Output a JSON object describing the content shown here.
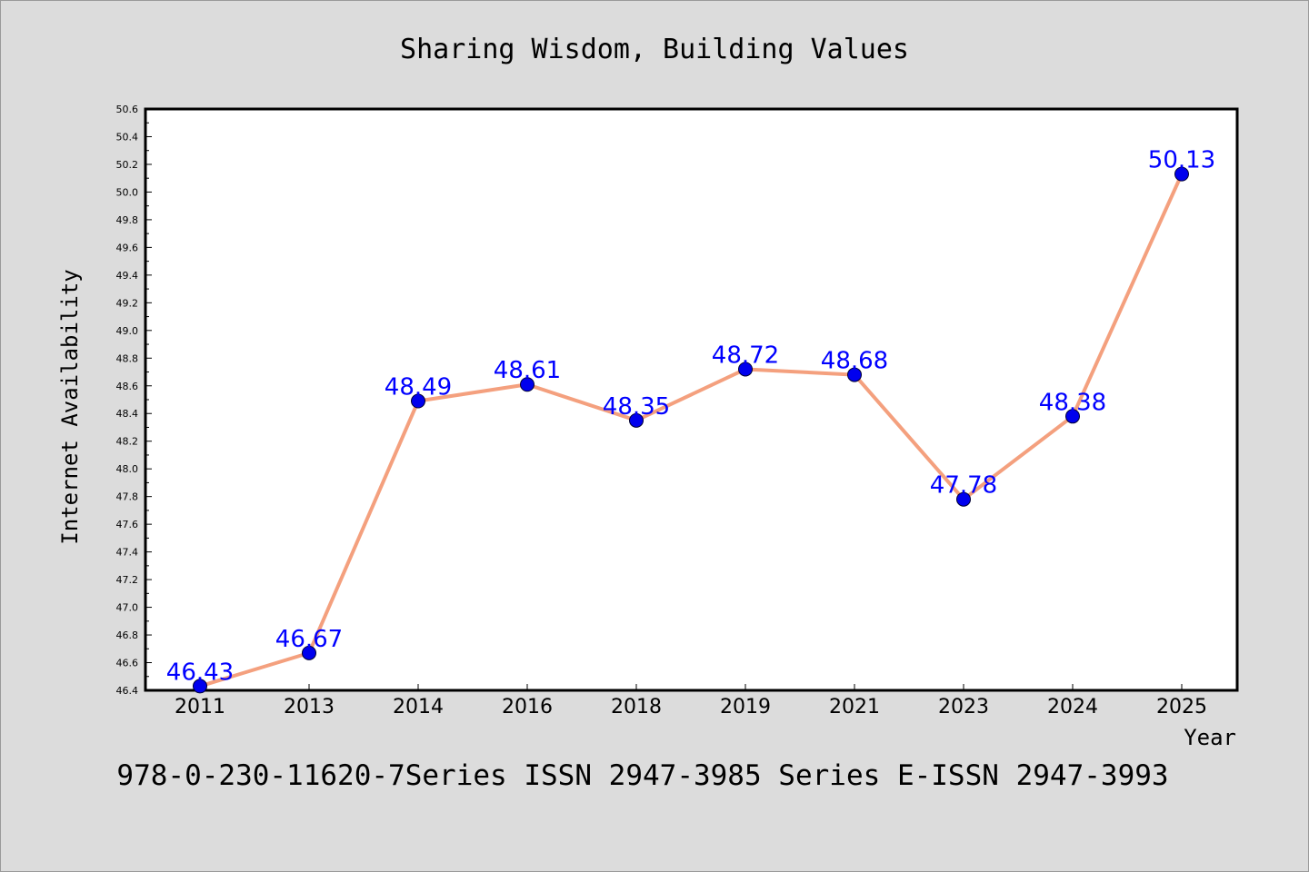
{
  "chart_data": {
    "type": "line",
    "title": "Sharing Wisdom, Building Values",
    "xlabel": "Year",
    "ylabel": "Internet Availability",
    "categories": [
      "2011",
      "2013",
      "2014",
      "2016",
      "2018",
      "2019",
      "2021",
      "2023",
      "2024",
      "2025"
    ],
    "values": [
      46.43,
      46.67,
      48.49,
      48.61,
      48.35,
      48.72,
      48.68,
      47.78,
      48.38,
      50.13
    ],
    "value_labels": [
      "46.43",
      "46.67",
      "48.49",
      "48.61",
      "48.35",
      "48.72",
      "48.68",
      "47.78",
      "48.38",
      "50.13"
    ],
    "ylim": [
      46.4,
      50.6
    ],
    "ytick_step": 0.2,
    "ytick_labels": [
      "46.4",
      "46.6",
      "46.8",
      "47.0",
      "47.2",
      "47.4",
      "47.6",
      "47.8",
      "48.0",
      "48.2",
      "48.4",
      "48.6",
      "48.8",
      "49.0",
      "49.2",
      "49.4",
      "49.6",
      "49.8",
      "50.0",
      "50.2",
      "50.4",
      "50.6"
    ],
    "grid": false,
    "colors": {
      "line": "#f4a07e",
      "marker": "#0000ee",
      "data_label": "#0000ff",
      "plot_background": "#ffffff",
      "page_background": "#dcdcdc"
    }
  },
  "footer_text": "978-0-230-11620-7Series ISSN 2947-3985 Series E-ISSN 2947-3993"
}
